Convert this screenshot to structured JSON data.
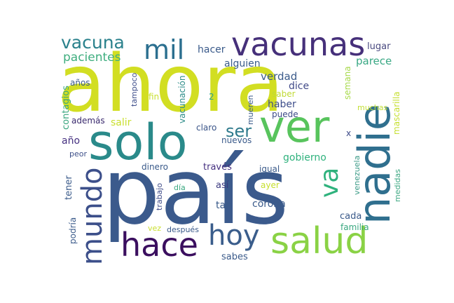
{
  "words": [
    {
      "id": "pais",
      "text": "país",
      "color": "#3b5a8c",
      "vertical": false
    },
    {
      "id": "ahora",
      "text": "ahora",
      "color": "#d2de22",
      "vertical": false
    },
    {
      "id": "solo",
      "text": "solo",
      "color": "#2a8a8a",
      "vertical": false
    },
    {
      "id": "ver",
      "text": "ver",
      "color": "#58c45d",
      "vertical": false
    },
    {
      "id": "nadie",
      "text": "nadie",
      "color": "#2f6f8e",
      "vertical": true
    },
    {
      "id": "salud",
      "text": "salud",
      "color": "#8ad245",
      "vertical": false
    },
    {
      "id": "vacunas",
      "text": "vacunas",
      "color": "#46307a",
      "vertical": false
    },
    {
      "id": "hace",
      "text": "hace",
      "color": "#3b0f5f",
      "vertical": false
    },
    {
      "id": "hoy",
      "text": "hoy",
      "color": "#3a5d8b",
      "vertical": false
    },
    {
      "id": "mundo",
      "text": "mundo",
      "color": "#3c4f8a",
      "vertical": true
    },
    {
      "id": "mil",
      "text": "mil",
      "color": "#2b6f8f",
      "vertical": false
    },
    {
      "id": "va",
      "text": "va",
      "color": "#2fb27d",
      "vertical": true
    },
    {
      "id": "vacuna",
      "text": "vacuna",
      "color": "#2a818c",
      "vertical": false
    },
    {
      "id": "ser",
      "text": "ser",
      "color": "#2f7a8c",
      "vertical": false
    },
    {
      "id": "pacientes",
      "text": "pacientes",
      "color": "#3fae7f",
      "vertical": false
    },
    {
      "id": "hacer",
      "text": "hacer",
      "color": "#3a5a8a",
      "vertical": false
    },
    {
      "id": "lugar",
      "text": "lugar",
      "color": "#4a4a80",
      "vertical": false
    },
    {
      "id": "alguien",
      "text": "alguien",
      "color": "#3a5c8b",
      "vertical": false
    },
    {
      "id": "verdad",
      "text": "verdad",
      "color": "#3a5a8a",
      "vertical": false
    },
    {
      "id": "parece",
      "text": "parece",
      "color": "#39a884",
      "vertical": false
    },
    {
      "id": "tampoco",
      "text": "tampoco",
      "color": "#3d4d8a",
      "vertical": true
    },
    {
      "id": "años",
      "text": "años",
      "color": "#3a5a8c",
      "vertical": false
    },
    {
      "id": "vacunacion",
      "text": "vacunación",
      "color": "#2c8c88",
      "vertical": true
    },
    {
      "id": "semana",
      "text": "semana",
      "color": "#a7d94a",
      "vertical": true
    },
    {
      "id": "mascarilla",
      "text": "mascarilla",
      "color": "#c5df2f",
      "vertical": true
    },
    {
      "id": "contagios",
      "text": "contagios",
      "color": "#3aa67f",
      "vertical": true
    },
    {
      "id": "fin",
      "text": "fin",
      "color": "#c8e030",
      "vertical": false
    },
    {
      "id": "dos",
      "text": "2",
      "color": "#2da28a",
      "vertical": false
    },
    {
      "id": "dice",
      "text": "dice",
      "color": "#414a88",
      "vertical": false
    },
    {
      "id": "saber",
      "text": "saber",
      "color": "#c0da35",
      "vertical": false
    },
    {
      "id": "haber",
      "text": "haber",
      "color": "#3c4d8a",
      "vertical": false
    },
    {
      "id": "puede",
      "text": "puede",
      "color": "#3d4a88",
      "vertical": false
    },
    {
      "id": "mueren",
      "text": "mueren",
      "color": "#3a5a8a",
      "vertical": true
    },
    {
      "id": "muchas",
      "text": "muchas",
      "color": "#c3df34",
      "vertical": false
    },
    {
      "id": "ademas",
      "text": "además",
      "color": "#3a2a6e",
      "vertical": false
    },
    {
      "id": "salir",
      "text": "salir",
      "color": "#c9df2d",
      "vertical": false
    },
    {
      "id": "claro",
      "text": "claro",
      "color": "#3a5488",
      "vertical": false
    },
    {
      "id": "x",
      "text": "x",
      "color": "#3d4a88",
      "vertical": false
    },
    {
      "id": "año",
      "text": "año",
      "color": "#453080",
      "vertical": false
    },
    {
      "id": "nuevos",
      "text": "nuevos",
      "color": "#3a5a8a",
      "vertical": false
    },
    {
      "id": "peor",
      "text": "peor",
      "color": "#3d4f88",
      "vertical": false
    },
    {
      "id": "gobierno",
      "text": "gobierno",
      "color": "#2fb27d",
      "vertical": false
    },
    {
      "id": "dinero",
      "text": "dinero",
      "color": "#3a5a8a",
      "vertical": false
    },
    {
      "id": "traves",
      "text": "través",
      "color": "#453080",
      "vertical": false
    },
    {
      "id": "igual",
      "text": "igual",
      "color": "#3a5a8a",
      "vertical": false
    },
    {
      "id": "venezuela",
      "text": "venezuela",
      "color": "#3a9a86",
      "vertical": true
    },
    {
      "id": "medidas",
      "text": "medidas",
      "color": "#3ea883",
      "vertical": true
    },
    {
      "id": "tener",
      "text": "tener",
      "color": "#3a5a8a",
      "vertical": true
    },
    {
      "id": "trabajo",
      "text": "trabajo",
      "color": "#3d4a88",
      "vertical": true
    },
    {
      "id": "dia",
      "text": "día",
      "color": "#3aa880",
      "vertical": false
    },
    {
      "id": "asi",
      "text": "así",
      "color": "#3d3a80",
      "vertical": false
    },
    {
      "id": "ayer",
      "text": "ayer",
      "color": "#c6df2c",
      "vertical": false
    },
    {
      "id": "tan",
      "text": "tan",
      "color": "#3a5a8a",
      "vertical": false
    },
    {
      "id": "corona",
      "text": "corona",
      "color": "#3a5a8a",
      "vertical": false
    },
    {
      "id": "cada",
      "text": "cada",
      "color": "#3a5a8a",
      "vertical": false
    },
    {
      "id": "familia",
      "text": "familia",
      "color": "#3aa880",
      "vertical": false
    },
    {
      "id": "podria",
      "text": "podría",
      "color": "#3a5a8a",
      "vertical": true
    },
    {
      "id": "vez",
      "text": "vez",
      "color": "#c9df2d",
      "vertical": false
    },
    {
      "id": "despues",
      "text": "después",
      "color": "#3a5a8a",
      "vertical": false
    },
    {
      "id": "sabes",
      "text": "sabes",
      "color": "#3a5a8a",
      "vertical": false
    }
  ]
}
